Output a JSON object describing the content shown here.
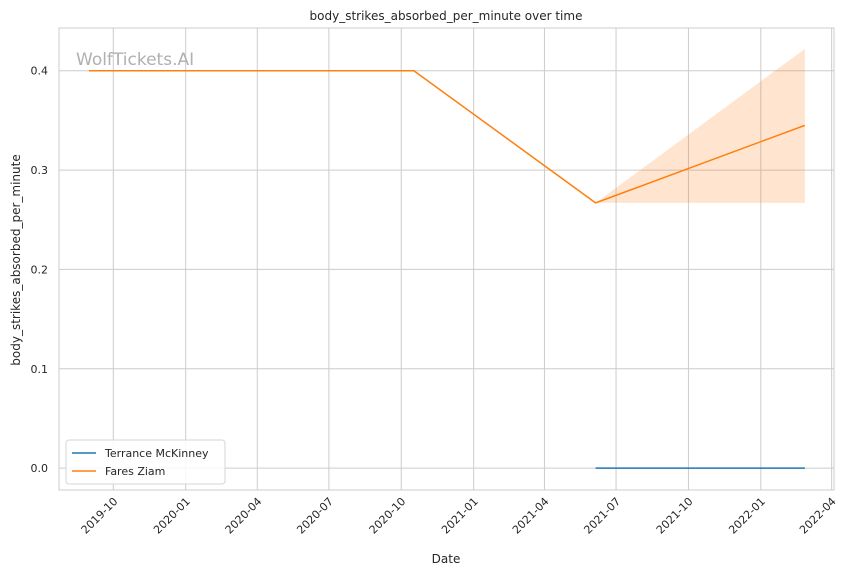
{
  "chart_data": {
    "type": "line",
    "title": "body_strikes_absorbed_per_minute over time",
    "xlabel": "Date",
    "ylabel": "body_strikes_absorbed_per_minute",
    "watermark": "WolfTickets.AI",
    "xlim": [
      "2019-07-24",
      "2022-04-04"
    ],
    "ylim": [
      -0.022,
      0.443
    ],
    "x_ticks": [
      "2019-10",
      "2020-01",
      "2020-04",
      "2020-07",
      "2020-10",
      "2021-01",
      "2021-04",
      "2021-07",
      "2021-10",
      "2022-01",
      "2022-04"
    ],
    "y_ticks": [
      0.0,
      0.1,
      0.2,
      0.3,
      0.4
    ],
    "y_tick_labels": [
      "0.0",
      "0.1",
      "0.2",
      "0.3",
      "0.4"
    ],
    "grid": true,
    "legend_position": "bottom-left",
    "series": [
      {
        "name": "Terrance McKinney",
        "color": "#1f77b4",
        "x": [
          "2021-06-05",
          "2022-02-26"
        ],
        "y": [
          0.0,
          0.0
        ]
      },
      {
        "name": "Fares Ziam",
        "color": "#ff7f0e",
        "x": [
          "2019-08-31",
          "2020-10-17",
          "2021-06-05",
          "2022-02-26"
        ],
        "y": [
          0.4,
          0.4,
          0.267,
          0.345
        ],
        "band": {
          "x": [
            "2021-06-05",
            "2022-02-26"
          ],
          "lower": [
            0.267,
            0.267
          ],
          "upper": [
            0.267,
            0.422
          ]
        }
      }
    ]
  }
}
